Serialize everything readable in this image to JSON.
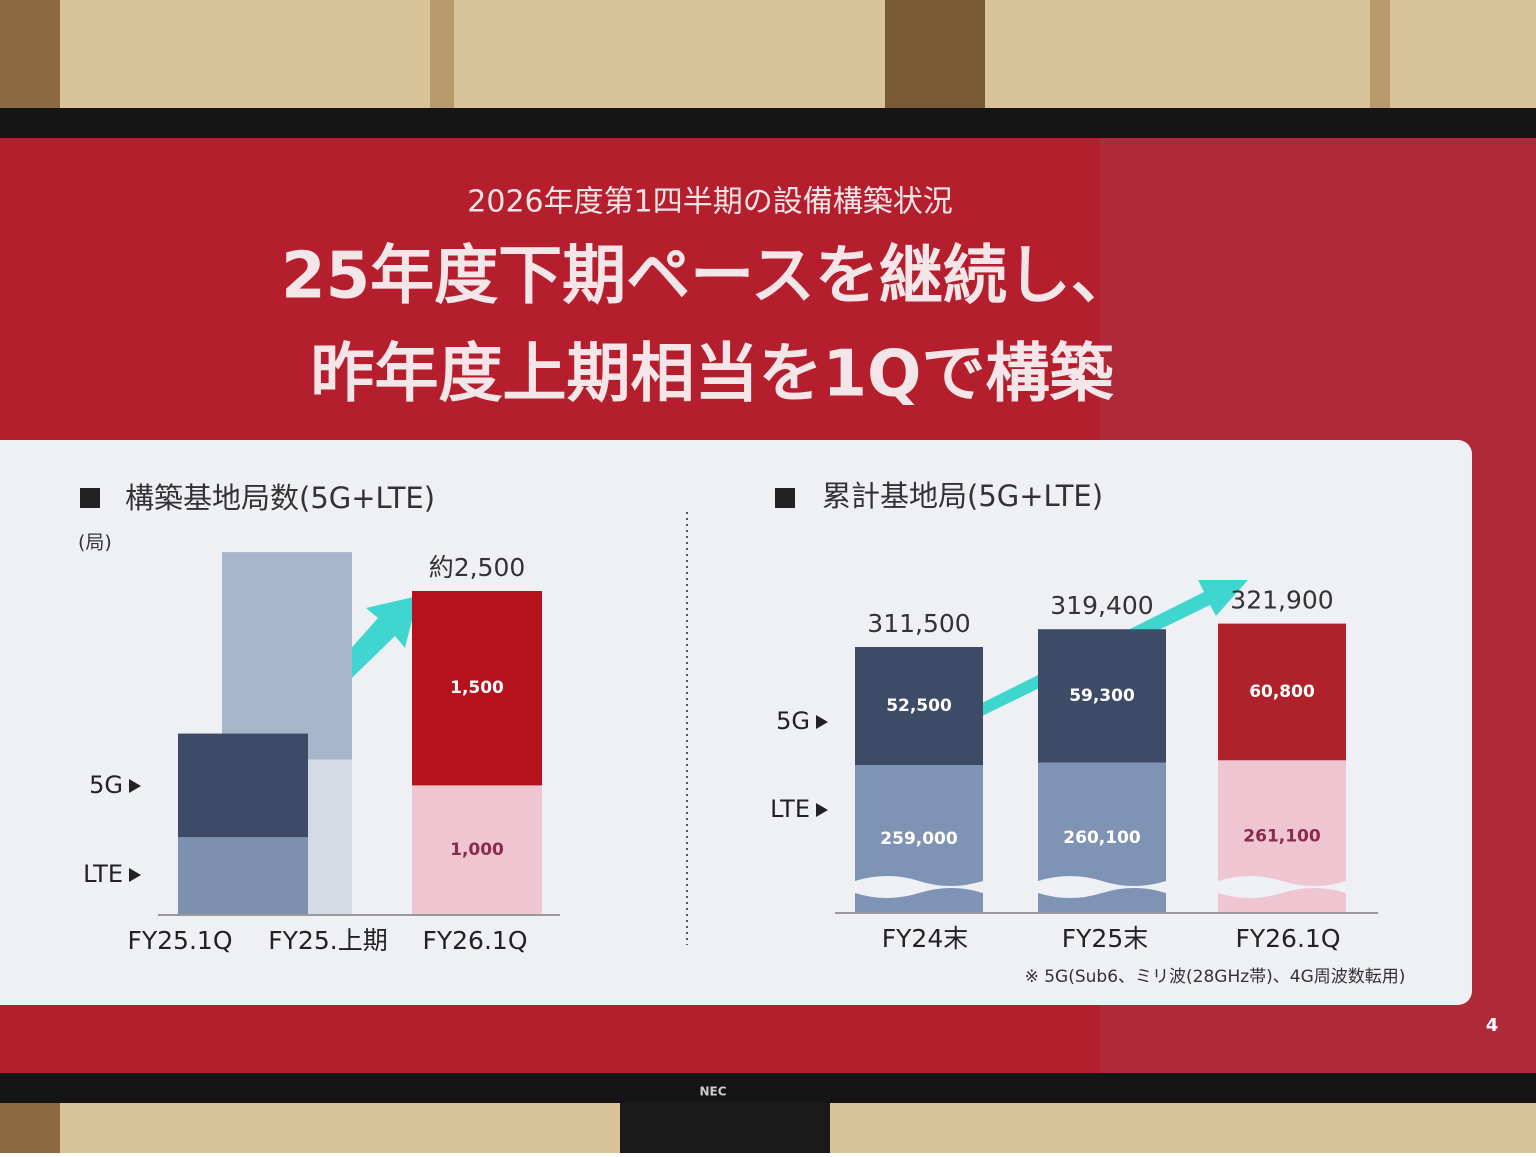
{
  "slide": {
    "kicker": "2026年度第1四半期の設備構築状況",
    "title_lines": [
      "25年度下期ペースを継続し、",
      "昨年度上期相当を1Qで構築"
    ],
    "page_number": "4",
    "monitor_brand": "NEC"
  },
  "chart_data": [
    {
      "type": "stacked-bar",
      "title": "構築基地局数(5G+LTE)",
      "unit": "(局)",
      "categories": [
        "FY25.1Q",
        "FY25.上期",
        "FY26.1Q"
      ],
      "series": [
        {
          "name": "LTE",
          "colors": [
            "#7d90ad",
            "#d5dbe5",
            "#efc5d2"
          ],
          "label_colors": [
            "#ffffff",
            "#ffffff",
            "#8b2a4c"
          ],
          "values": [
            600,
            1200,
            1000
          ],
          "value_labels": [
            null,
            null,
            "1,000"
          ]
        },
        {
          "name": "5G",
          "colors": [
            "#3e4b66",
            "#a7b6cb",
            "#b5121c"
          ],
          "label_colors": [
            "#ffffff",
            "#ffffff",
            "#ffffff"
          ],
          "values": [
            800,
            1600,
            1500
          ],
          "value_labels": [
            null,
            null,
            "1,500"
          ]
        }
      ],
      "totals": [
        null,
        null,
        2500
      ],
      "total_labels": [
        null,
        null,
        "約2,500"
      ],
      "axis_break": false
    },
    {
      "type": "stacked-bar",
      "title": "累計基地局(5G+LTE)",
      "categories": [
        "FY24末",
        "FY25末",
        "FY26.1Q"
      ],
      "series": [
        {
          "name": "LTE",
          "colors": [
            "#7f93b4",
            "#7f93b4",
            "#efc5d2"
          ],
          "label_colors": [
            "#ffffff",
            "#ffffff",
            "#8b2a4c"
          ],
          "values": [
            259000,
            260100,
            261100
          ],
          "value_labels": [
            "259,000",
            "260,100",
            "261,100"
          ]
        },
        {
          "name": "5G",
          "colors": [
            "#3e4b66",
            "#3e4b66",
            "#b0222b"
          ],
          "label_colors": [
            "#ffffff",
            "#ffffff",
            "#ffffff"
          ],
          "values": [
            52500,
            59300,
            60800
          ],
          "value_labels": [
            "52,500",
            "59,300",
            "60,800"
          ]
        }
      ],
      "totals": [
        311500,
        319400,
        321900
      ],
      "total_labels": [
        "311,500",
        "319,400",
        "321,900"
      ],
      "axis_break": true,
      "footnote": "※ 5G(Sub6、ミリ波(28GHz帯)、4G周波数転用)"
    }
  ]
}
